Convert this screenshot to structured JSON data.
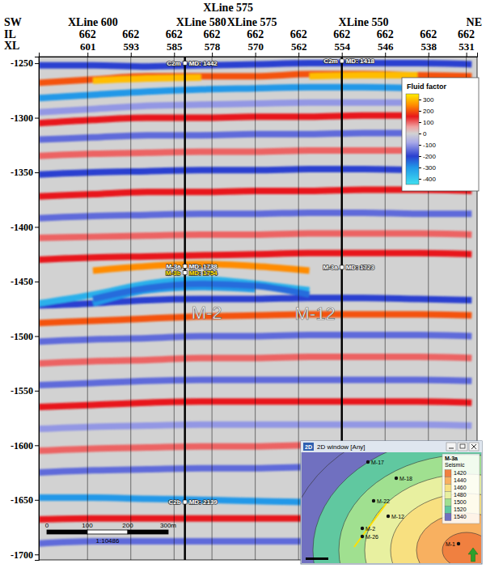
{
  "chart_data": {
    "type": "seismic_section",
    "header": {
      "left": "SW",
      "right": "NE",
      "il_label": "IL",
      "xl_label": "XL",
      "xline_labels": [
        {
          "value": 600,
          "label": "XLine 600"
        },
        {
          "value": 575,
          "label": "XLine 575"
        },
        {
          "value": 580,
          "label": "XLine 580"
        },
        {
          "value": 575,
          "label": "XLine 575"
        },
        {
          "value": 550,
          "label": "XLine 550"
        }
      ],
      "il_values": [
        662,
        662,
        662,
        662,
        662,
        662,
        662,
        662,
        662,
        662
      ]
    },
    "xlim": [
      610,
      529
    ],
    "ylim": [
      -1244,
      -1705
    ],
    "xticks": [
      601,
      593,
      585,
      578,
      570,
      562,
      554,
      546,
      538,
      531
    ],
    "yticks": [
      -1250,
      -1300,
      -1350,
      -1400,
      -1450,
      -1500,
      -1550,
      -1600,
      -1650,
      -1700
    ],
    "grid": true,
    "horizons": {
      "x": [
        610,
        600,
        590,
        580,
        570,
        560,
        550,
        540,
        530
      ],
      "series": [
        {
          "value": -200,
          "depth": [
            -1252,
            -1252,
            -1253,
            -1252,
            -1251,
            -1250,
            -1250,
            -1250,
            -1251
          ]
        },
        {
          "value": 200,
          "depth": [
            -1268,
            -1265,
            -1262,
            -1262,
            -1262,
            -1260,
            -1260,
            -1261,
            -1262
          ]
        },
        {
          "value": 300,
          "depth": [
            null,
            -1266,
            -1264,
            -1263,
            null,
            -1262,
            -1261,
            -1261,
            null
          ]
        },
        {
          "value": -300,
          "depth": [
            -1282,
            -1279,
            -1276,
            -1274,
            -1273,
            -1272,
            -1272,
            -1273,
            -1274
          ]
        },
        {
          "value": -100,
          "depth": [
            -1295,
            -1292,
            -1289,
            -1288,
            -1287,
            -1286,
            -1286,
            -1286,
            -1287
          ]
        },
        {
          "value": 150,
          "depth": [
            -1305,
            -1302,
            -1300,
            -1300,
            -1299,
            -1299,
            -1298,
            -1298,
            -1299
          ]
        },
        {
          "value": -150,
          "depth": [
            -1320,
            -1318,
            -1316,
            -1316,
            -1315,
            -1315,
            -1314,
            -1314,
            -1315
          ]
        },
        {
          "value": 100,
          "depth": [
            -1335,
            -1333,
            -1332,
            -1331,
            -1331,
            -1330,
            -1330,
            -1330,
            -1331
          ]
        },
        {
          "value": -200,
          "depth": [
            -1352,
            -1350,
            -1349,
            -1348,
            -1348,
            -1347,
            -1347,
            -1348,
            -1349
          ]
        },
        {
          "value": 150,
          "depth": [
            -1372,
            -1370,
            -1368,
            -1368,
            -1367,
            -1367,
            -1366,
            -1366,
            -1367
          ]
        },
        {
          "value": -150,
          "depth": [
            -1392,
            -1390,
            -1389,
            -1388,
            -1388,
            -1387,
            -1387,
            -1388,
            -1388
          ]
        },
        {
          "value": 100,
          "depth": [
            -1410,
            -1409,
            -1408,
            -1407,
            -1407,
            -1406,
            -1406,
            -1406,
            -1407
          ]
        },
        {
          "value": 150,
          "depth": [
            -1430,
            -1428,
            -1427,
            -1426,
            -1425,
            -1424,
            -1424,
            -1424,
            -1425
          ]
        },
        {
          "value": 250,
          "depth": [
            null,
            -1440,
            -1436,
            -1434,
            -1436,
            -1440,
            null,
            null,
            null
          ]
        },
        {
          "value": -200,
          "depth": [
            -1472,
            -1470,
            -1467,
            -1466,
            -1466,
            -1465,
            -1465,
            -1466,
            -1467
          ]
        },
        {
          "value": -350,
          "depth": [
            -1470,
            -1462,
            -1452,
            -1448,
            -1452,
            -1458,
            null,
            null,
            null
          ]
        },
        {
          "value": -300,
          "depth": [
            null,
            -1470,
            -1458,
            -1455,
            -1457,
            null,
            null,
            null,
            null
          ]
        },
        {
          "value": -250,
          "depth": [
            null,
            -1466,
            -1456,
            -1452,
            -1454,
            -1462,
            null,
            null,
            null
          ]
        },
        {
          "value": 200,
          "depth": [
            -1488,
            -1486,
            -1484,
            -1482,
            -1481,
            -1480,
            -1480,
            -1480,
            -1481
          ]
        },
        {
          "value": -150,
          "depth": [
            -1505,
            -1503,
            -1502,
            -1500,
            -1500,
            -1499,
            -1499,
            -1499,
            -1500
          ]
        },
        {
          "value": 100,
          "depth": [
            -1525,
            -1523,
            -1522,
            -1520,
            -1520,
            -1519,
            -1519,
            -1519,
            -1520
          ]
        },
        {
          "value": -150,
          "depth": [
            -1545,
            -1543,
            -1541,
            -1540,
            -1540,
            -1540,
            -1540,
            -1540,
            -1541
          ]
        },
        {
          "value": 150,
          "depth": [
            -1565,
            -1563,
            -1561,
            -1560,
            -1560,
            -1560,
            -1560,
            -1560,
            -1561
          ]
        },
        {
          "value": -100,
          "depth": [
            -1585,
            -1583,
            -1582,
            -1581,
            -1581,
            -1581,
            -1581,
            -1581,
            -1582
          ]
        },
        {
          "value": 100,
          "depth": [
            -1605,
            -1603,
            -1602,
            -1601,
            -1601,
            -1600,
            -1600,
            -1601,
            -1602
          ]
        },
        {
          "value": -150,
          "depth": [
            -1625,
            -1623,
            -1622,
            -1621,
            -1621,
            -1620,
            -1620,
            -1621,
            -1622
          ]
        },
        {
          "value": -300,
          "depth": [
            -1648,
            -1648,
            -1649,
            -1650,
            -1651,
            -1652,
            -1652,
            -1653,
            -1654
          ]
        },
        {
          "value": 150,
          "depth": [
            -1668,
            -1667,
            -1667,
            -1667,
            -1667,
            -1667,
            -1667,
            -1668,
            -1668
          ]
        },
        {
          "value": -150,
          "depth": [
            -1690,
            -1688,
            -1688,
            -1688,
            -1688,
            -1688,
            -1688,
            -1688,
            -1689
          ]
        }
      ]
    },
    "colorbar": {
      "title": "Fluid factor",
      "range": [
        350,
        -450
      ],
      "ticks": [
        300,
        200,
        100,
        0,
        -100,
        -200,
        -300,
        -400
      ],
      "stops": [
        {
          "value": 350,
          "color": "#ffee00"
        },
        {
          "value": 250,
          "color": "#ff8c00"
        },
        {
          "value": 150,
          "color": "#e8181a"
        },
        {
          "value": 60,
          "color": "#f0a0a0"
        },
        {
          "value": 0,
          "color": "#d2d2d2"
        },
        {
          "value": -80,
          "color": "#a8a8e8"
        },
        {
          "value": -200,
          "color": "#2a3fd0"
        },
        {
          "value": -300,
          "color": "#2098e8"
        },
        {
          "value": -450,
          "color": "#40e0f0"
        }
      ]
    },
    "wells": [
      {
        "name": "M-2",
        "xl": 583,
        "markers": [
          {
            "name": "C2m",
            "md_label": "MD: 1442",
            "depth": -1250,
            "color": "#ffffff"
          },
          {
            "name": "M-3a",
            "md_label": "MD: 1738",
            "depth": -1436,
            "color": "#ffffff"
          },
          {
            "name": "M-3b",
            "md_label": "MD: 1754",
            "depth": -1442,
            "color": "#ffe000"
          },
          {
            "name": "C2b",
            "md_label": "MD: 2139",
            "depth": -1652,
            "color": "#ffffff"
          }
        ]
      },
      {
        "name": "M-12",
        "xl": 554,
        "markers": [
          {
            "name": "C2m",
            "md_label": "MD: 1418",
            "depth": -1248,
            "color": "#ffffff"
          },
          {
            "name": "M-3a",
            "md_label": "MD: 1723",
            "depth": -1437,
            "color": "#ffffff"
          }
        ]
      }
    ],
    "scale_bar": {
      "ticks": [
        0,
        100,
        200,
        {
          "value": 300,
          "label": "300m"
        }
      ],
      "ratio": "1:10486"
    },
    "inset": {
      "icon": "2D",
      "title": "2D window [Any]",
      "legend_title": "M-3a",
      "legend_subtitle": "Seismic",
      "levels": [
        1420,
        1440,
        1460,
        1480,
        1500,
        1520,
        1540
      ],
      "level_colors": [
        "#f08040",
        "#f8b060",
        "#f8e080",
        "#e8f0a0",
        "#a0e090",
        "#60c8a0",
        "#7070c0"
      ],
      "wells": [
        "M-17",
        "M-18",
        "M-22",
        "M-12",
        "M-2",
        "M-26",
        "M-1"
      ]
    }
  }
}
